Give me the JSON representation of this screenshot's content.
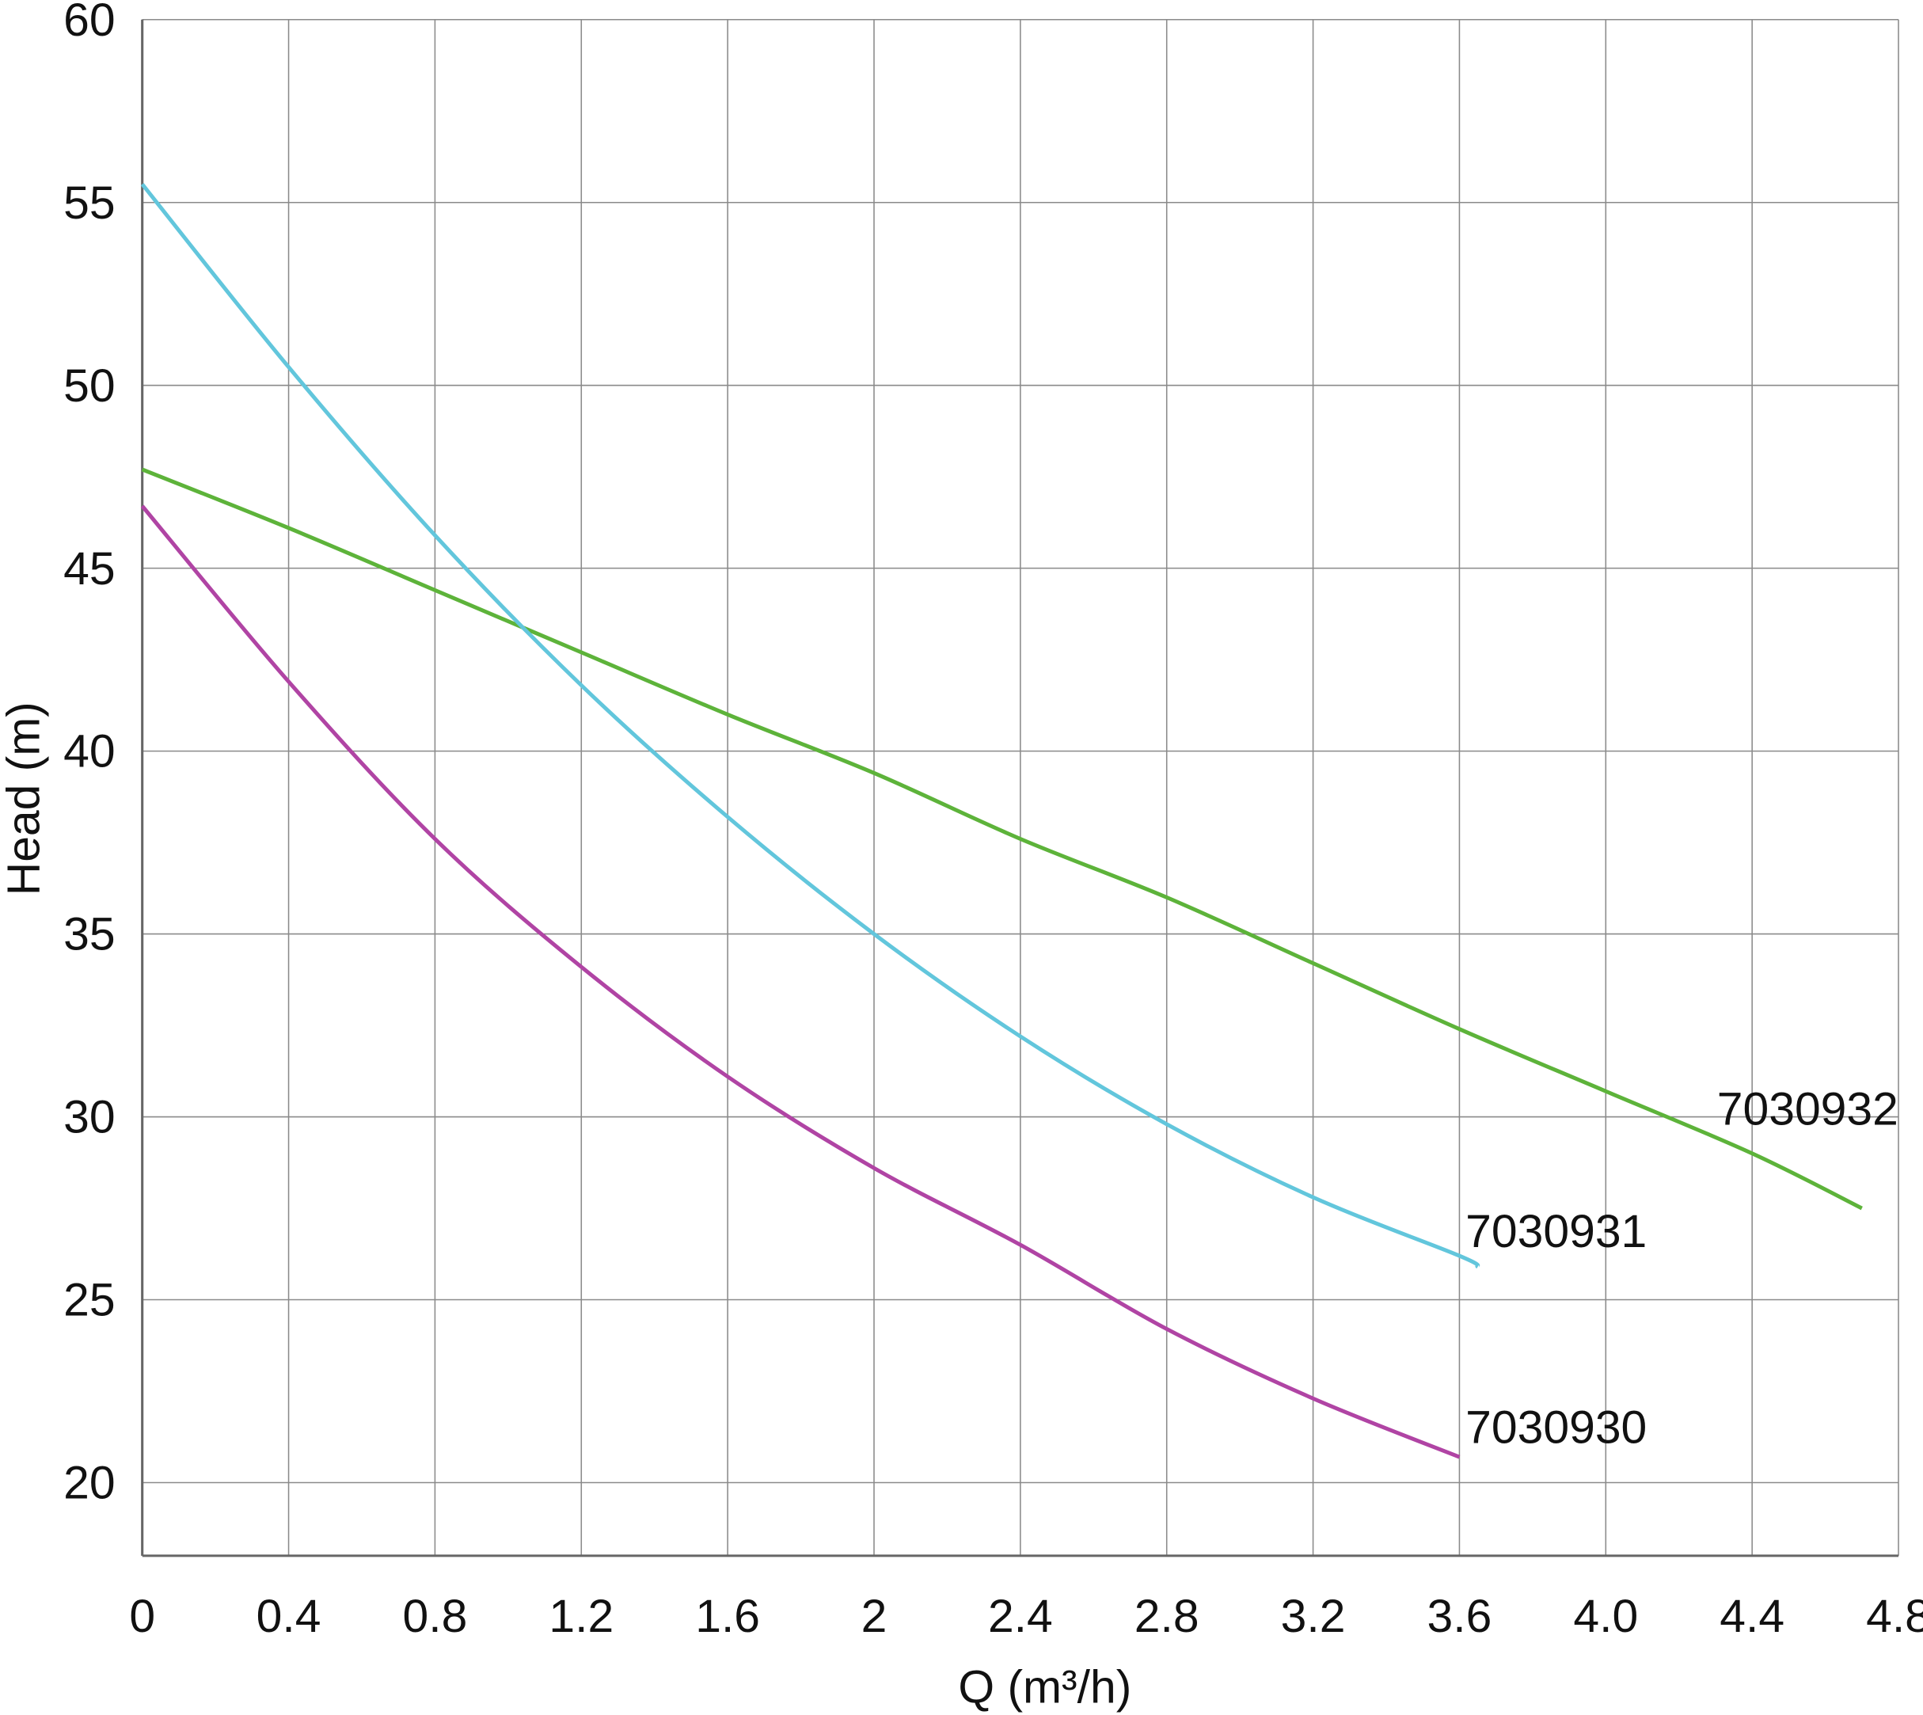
{
  "chart_data": {
    "type": "line",
    "title": "",
    "xlabel": "Q (m³/h)",
    "ylabel": "Head (m)",
    "xlim": [
      0,
      4.8
    ],
    "ylim": [
      18,
      60
    ],
    "grid": true,
    "x_ticks": [
      0,
      0.4,
      0.8,
      1.2,
      1.6,
      2,
      2.4,
      2.8,
      3.2,
      3.6,
      4.0,
      4.4,
      4.8
    ],
    "x_tick_labels": [
      "0",
      "0.4",
      "0.8",
      "1.2",
      "1.6",
      "2",
      "2.4",
      "2.8",
      "3.2",
      "3.6",
      "4.0",
      "4.4",
      "4.8"
    ],
    "y_ticks": [
      20,
      25,
      30,
      35,
      40,
      45,
      50,
      55,
      60
    ],
    "y_tick_labels": [
      "20",
      "25",
      "30",
      "35",
      "40",
      "45",
      "50",
      "55",
      "60"
    ],
    "series": [
      {
        "name": "7030932",
        "color": "#5db33a",
        "x": [
          0,
          0.4,
          0.8,
          1.2,
          1.6,
          2.0,
          2.4,
          2.8,
          3.2,
          3.6,
          4.0,
          4.4,
          4.7
        ],
        "y": [
          47.7,
          46.1,
          44.4,
          42.7,
          41.0,
          39.4,
          37.6,
          36.0,
          34.2,
          32.4,
          30.7,
          29.0,
          27.5
        ]
      },
      {
        "name": "7030931",
        "color": "#62c6dc",
        "x": [
          0,
          0.4,
          0.8,
          1.2,
          1.6,
          2.0,
          2.4,
          2.8,
          3.2,
          3.6,
          3.65
        ],
        "y": [
          55.5,
          50.5,
          45.9,
          41.8,
          38.2,
          35.0,
          32.2,
          29.8,
          27.8,
          26.2,
          25.9
        ]
      },
      {
        "name": "7030930",
        "color": "#b044a4",
        "x": [
          0,
          0.4,
          0.8,
          1.2,
          1.6,
          2.0,
          2.4,
          2.8,
          3.2,
          3.6
        ],
        "y": [
          46.7,
          41.9,
          37.6,
          34.1,
          31.1,
          28.6,
          26.5,
          24.2,
          22.3,
          20.7
        ]
      }
    ]
  }
}
